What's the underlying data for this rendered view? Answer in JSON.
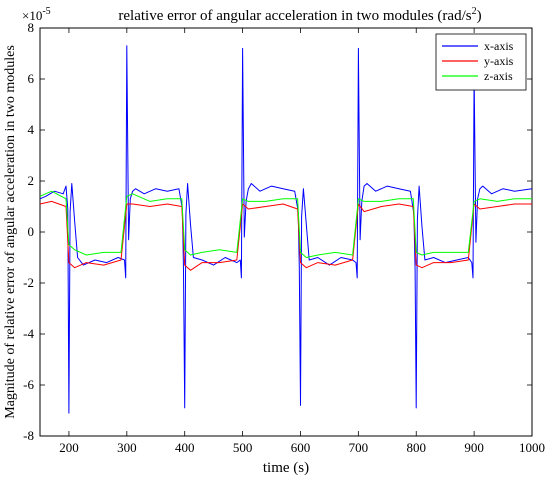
{
  "chart_data": {
    "type": "line",
    "title_prefix": "relative error of angular acceleration in two modules (rad/s",
    "title_sup": "2",
    "title_suffix": ")",
    "xlabel": "time (s)",
    "ylabel": "Magnitude of relative error of angular acceleration in two modules",
    "xlim": [
      150,
      1000
    ],
    "ylim": [
      -8,
      8
    ],
    "exponent_prefix": "×10",
    "exponent_power": "-5",
    "xticks": [
      200,
      300,
      400,
      500,
      600,
      700,
      800,
      900,
      1000
    ],
    "yticks": [
      -8,
      -6,
      -4,
      -2,
      0,
      2,
      4,
      6,
      8
    ],
    "legend": "top-right",
    "grid": false,
    "series": [
      {
        "name": "x-axis",
        "color": "#0000ff",
        "x": [
          150,
          160,
          175,
          190,
          195,
          198,
          200,
          202,
          205,
          210,
          215,
          225,
          245,
          265,
          285,
          296,
          298,
          300,
          303,
          306,
          310,
          315,
          330,
          350,
          370,
          390,
          396,
          398,
          400,
          402,
          405,
          410,
          415,
          430,
          450,
          470,
          490,
          496,
          498,
          500,
          503,
          506,
          510,
          515,
          530,
          550,
          570,
          590,
          596,
          598,
          600,
          602,
          605,
          610,
          615,
          630,
          650,
          670,
          690,
          696,
          698,
          700,
          703,
          706,
          710,
          715,
          730,
          750,
          770,
          790,
          796,
          798,
          800,
          802,
          805,
          810,
          815,
          830,
          850,
          870,
          890,
          896,
          898,
          900,
          903,
          906,
          910,
          915,
          930,
          950,
          970,
          1000
        ],
        "y": [
          1.3,
          1.4,
          1.6,
          1.5,
          1.8,
          0.9,
          -7.1,
          0.8,
          1.9,
          0.4,
          -1.0,
          -1.3,
          -1.1,
          -1.2,
          -1.0,
          -1.1,
          -1.8,
          7.3,
          -0.3,
          1.3,
          1.6,
          1.7,
          1.5,
          1.7,
          1.6,
          1.7,
          0.9,
          -1.5,
          -6.9,
          0.7,
          1.9,
          0.3,
          -1.0,
          -1.1,
          -1.3,
          -1.0,
          -1.2,
          -1.1,
          -1.8,
          7.2,
          -0.2,
          1.2,
          1.7,
          1.9,
          1.6,
          1.8,
          1.7,
          1.6,
          0.8,
          -1.4,
          -6.8,
          0.6,
          1.7,
          0.3,
          -1.1,
          -1.0,
          -1.3,
          -1.0,
          -1.1,
          -1.2,
          -1.8,
          7.2,
          -0.3,
          1.2,
          1.8,
          1.9,
          1.6,
          1.8,
          1.7,
          1.6,
          0.7,
          -1.5,
          -6.9,
          0.5,
          1.8,
          0.2,
          -1.1,
          -1.0,
          -1.2,
          -1.1,
          -1.0,
          -1.2,
          -1.8,
          6.2,
          -0.4,
          1.3,
          1.7,
          1.8,
          1.5,
          1.7,
          1.6,
          1.7
        ]
      },
      {
        "name": "y-axis",
        "color": "#ff0000",
        "x": [
          150,
          170,
          195,
          200,
          210,
          230,
          260,
          290,
          300,
          310,
          340,
          370,
          395,
          400,
          410,
          430,
          460,
          490,
          500,
          510,
          540,
          570,
          595,
          600,
          610,
          630,
          660,
          690,
          700,
          710,
          740,
          770,
          795,
          800,
          810,
          830,
          860,
          890,
          900,
          910,
          940,
          970,
          1000
        ],
        "y": [
          1.1,
          1.2,
          1.0,
          -1.2,
          -1.4,
          -1.2,
          -1.3,
          -1.1,
          1.1,
          1.1,
          1.0,
          1.1,
          1.0,
          -1.3,
          -1.5,
          -1.2,
          -1.2,
          -1.1,
          1.1,
          0.9,
          1.0,
          1.1,
          0.9,
          -1.2,
          -1.4,
          -1.2,
          -1.3,
          -1.1,
          1.1,
          0.8,
          1.0,
          1.1,
          1.0,
          -1.3,
          -1.4,
          -1.2,
          -1.2,
          -1.1,
          1.1,
          0.9,
          1.0,
          1.1,
          1.1
        ]
      },
      {
        "name": "z-axis",
        "color": "#00ff00",
        "x": [
          150,
          170,
          195,
          200,
          210,
          230,
          260,
          290,
          300,
          310,
          340,
          370,
          395,
          400,
          410,
          430,
          460,
          490,
          500,
          510,
          540,
          570,
          595,
          600,
          610,
          630,
          660,
          690,
          700,
          710,
          740,
          770,
          795,
          800,
          810,
          830,
          860,
          890,
          900,
          910,
          940,
          970,
          1000
        ],
        "y": [
          1.4,
          1.6,
          1.3,
          -0.5,
          -0.7,
          -0.9,
          -0.8,
          -0.8,
          1.4,
          1.5,
          1.2,
          1.3,
          1.3,
          -0.7,
          -0.9,
          -0.8,
          -0.7,
          -0.8,
          1.3,
          1.2,
          1.2,
          1.3,
          1.3,
          -0.8,
          -1.0,
          -0.9,
          -0.8,
          -0.9,
          1.3,
          1.2,
          1.2,
          1.3,
          1.3,
          -0.8,
          -0.9,
          -0.8,
          -0.8,
          -0.8,
          1.2,
          1.3,
          1.2,
          1.3,
          1.3
        ]
      }
    ]
  }
}
